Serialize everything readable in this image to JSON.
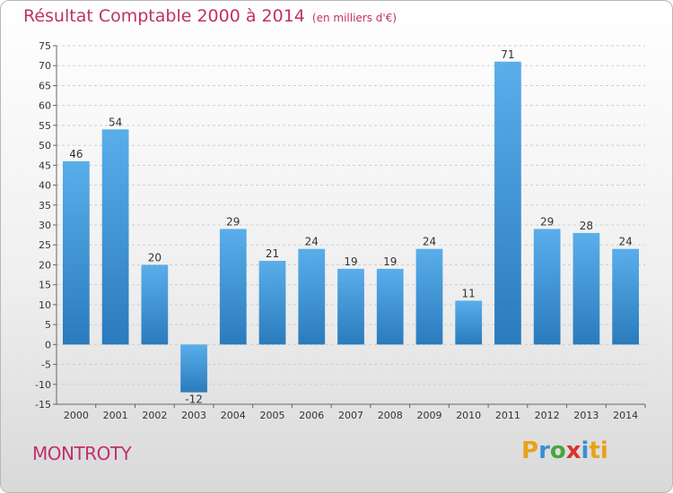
{
  "chart_data": {
    "type": "bar",
    "title": "Résultat Comptable 2000 à 2014",
    "subtitle": "(en milliers d'€)",
    "categories": [
      "2000",
      "2001",
      "2002",
      "2003",
      "2004",
      "2005",
      "2006",
      "2007",
      "2008",
      "2009",
      "2010",
      "2011",
      "2012",
      "2013",
      "2014"
    ],
    "values": [
      46,
      54,
      20,
      -12,
      29,
      21,
      24,
      19,
      19,
      24,
      11,
      71,
      29,
      28,
      24
    ],
    "ylim": [
      -15,
      75
    ],
    "yticks": [
      -15,
      -10,
      -5,
      0,
      5,
      10,
      15,
      20,
      25,
      30,
      35,
      40,
      45,
      50,
      55,
      60,
      65,
      70,
      75
    ],
    "xlabel": "",
    "ylabel": "",
    "grid": true,
    "bar_color": "#3d95d6"
  },
  "footer": {
    "commune": "MONTROTY",
    "logo_letters": [
      "P",
      "r",
      "o",
      "x",
      "i",
      "ti"
    ]
  }
}
